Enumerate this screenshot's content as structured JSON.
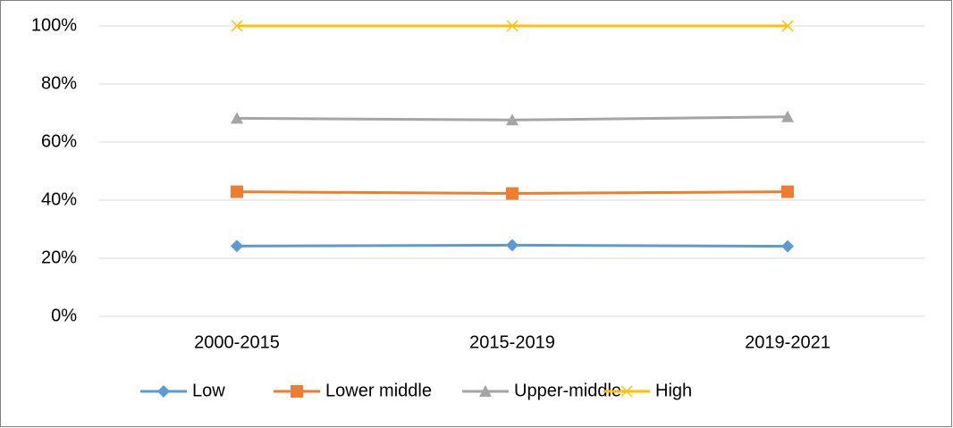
{
  "chart_data": {
    "type": "line",
    "categories": [
      "2000-2015",
      "2015-2019",
      "2019-2021"
    ],
    "series": [
      {
        "name": "Low",
        "color": "#5b9bd5",
        "marker": "diamond",
        "values": [
          24.2,
          24.5,
          24.1
        ]
      },
      {
        "name": "Lower middle",
        "color": "#ed7d31",
        "marker": "square",
        "values": [
          42.9,
          42.3,
          42.9
        ]
      },
      {
        "name": "Upper-middle",
        "color": "#a5a5a5",
        "marker": "triangle",
        "values": [
          68.2,
          67.6,
          68.7
        ]
      },
      {
        "name": "High",
        "color": "#ffc000",
        "marker": "x",
        "values": [
          100,
          100,
          100
        ]
      }
    ],
    "ylim": [
      0,
      100
    ],
    "yticks": [
      {
        "value": 0,
        "label": "0%"
      },
      {
        "value": 20,
        "label": "20%"
      },
      {
        "value": 40,
        "label": "40%"
      },
      {
        "value": 60,
        "label": "60%"
      },
      {
        "value": 80,
        "label": "80%"
      },
      {
        "value": 100,
        "label": "100%"
      }
    ],
    "grid": true,
    "legend": "bottom"
  }
}
